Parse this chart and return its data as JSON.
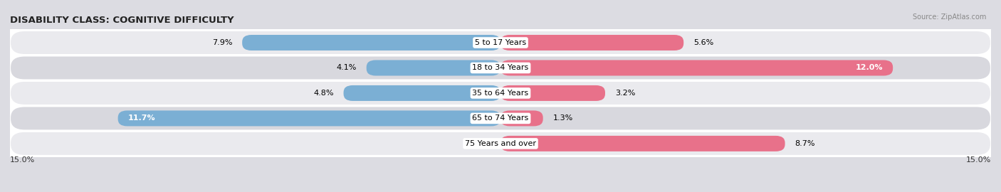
{
  "title": "DISABILITY CLASS: COGNITIVE DIFFICULTY",
  "source": "Source: ZipAtlas.com",
  "categories": [
    "5 to 17 Years",
    "18 to 34 Years",
    "35 to 64 Years",
    "65 to 74 Years",
    "75 Years and over"
  ],
  "male_values": [
    7.9,
    4.1,
    4.8,
    11.7,
    0.0
  ],
  "female_values": [
    5.6,
    12.0,
    3.2,
    1.3,
    8.7
  ],
  "male_color": "#7bafd4",
  "female_color": "#e8718a",
  "female_color_light": "#eeaabb",
  "male_color_light": "#b0cce0",
  "row_bg_colors": [
    "#eaeaee",
    "#d8d8de",
    "#eaeaee",
    "#d8d8de",
    "#eaeaee"
  ],
  "axis_max": 15.0,
  "title_fontsize": 9.5,
  "label_fontsize": 8,
  "value_fontsize": 8,
  "legend_fontsize": 8.5
}
